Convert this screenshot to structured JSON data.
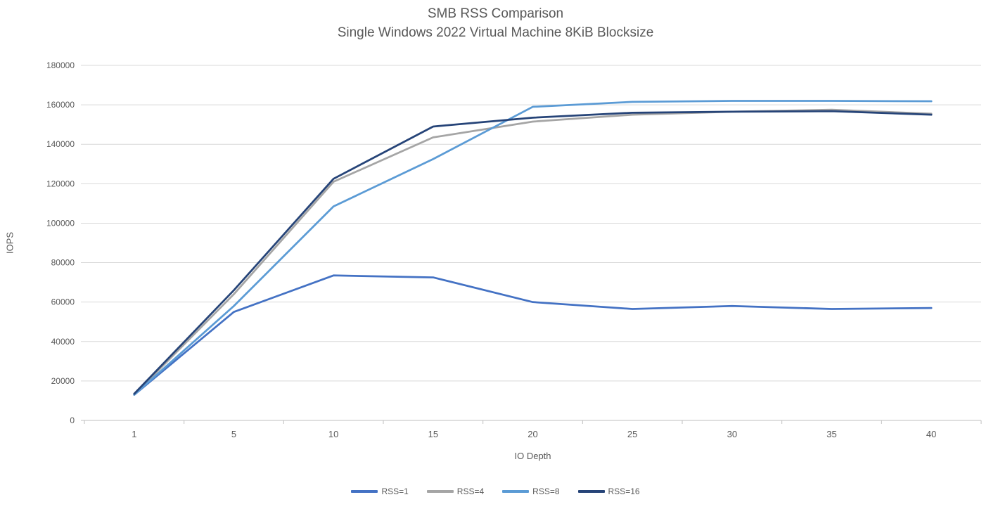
{
  "chart_data": {
    "type": "line",
    "title": "SMB RSS Comparison",
    "subtitle": "Single Windows 2022 Virtual Machine 8KiB Blocksize",
    "xlabel": "IO Depth",
    "ylabel": "IOPS",
    "categories": [
      1,
      5,
      10,
      15,
      20,
      25,
      30,
      35,
      40
    ],
    "ylim": [
      0,
      180000
    ],
    "ytick_step": 20000,
    "ytick_labels": [
      "0",
      "20000",
      "40000",
      "60000",
      "80000",
      "100000",
      "120000",
      "140000",
      "160000",
      "180000"
    ],
    "grid": true,
    "legend_position": "bottom",
    "series": [
      {
        "name": "RSS=1",
        "color": "#4472C4",
        "values": [
          13000,
          55000,
          73500,
          72500,
          60000,
          56500,
          58000,
          56500,
          57000
        ]
      },
      {
        "name": "RSS=4",
        "color": "#A5A5A5",
        "values": [
          13000,
          64000,
          121000,
          143500,
          151500,
          155000,
          156500,
          157500,
          155500
        ]
      },
      {
        "name": "RSS=8",
        "color": "#5B9BD5",
        "values": [
          13000,
          58000,
          108500,
          132500,
          159000,
          161500,
          162000,
          162000,
          161800
        ]
      },
      {
        "name": "RSS=16",
        "color": "#264478",
        "values": [
          13500,
          66000,
          122500,
          149000,
          153500,
          156000,
          156500,
          156800,
          155000
        ]
      }
    ],
    "colors": {
      "grid": "#D9D9D9",
      "axis_line": "#BFBFBF",
      "axis_text": "#595959",
      "title_text": "#595959",
      "background": "#FFFFFF"
    }
  }
}
